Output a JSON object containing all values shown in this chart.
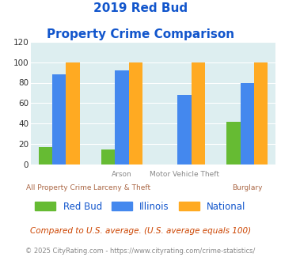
{
  "title_line1": "2019 Red Bud",
  "title_line2": "Property Crime Comparison",
  "cat_labels_top": [
    "",
    "Arson",
    "Motor Vehicle Theft",
    ""
  ],
  "cat_labels_bot": [
    "All Property Crime",
    "Larceny & Theft",
    "",
    "Burglary"
  ],
  "series": {
    "Red Bud": [
      17,
      15,
      0,
      42
    ],
    "Illinois": [
      88,
      92,
      68,
      80
    ],
    "National": [
      100,
      100,
      100,
      100
    ]
  },
  "colors": {
    "Red Bud": "#66bb33",
    "Illinois": "#4488ee",
    "National": "#ffaa22"
  },
  "ylim": [
    0,
    120
  ],
  "yticks": [
    0,
    20,
    40,
    60,
    80,
    100,
    120
  ],
  "background_color": "#ddeef0",
  "title_color": "#1155cc",
  "xlabel_color_top": "#888888",
  "xlabel_color_bot": "#aa6644",
  "legend_label_color": "#1155cc",
  "footnote1": "Compared to U.S. average. (U.S. average equals 100)",
  "footnote2": "© 2025 CityRating.com - https://www.cityrating.com/crime-statistics/",
  "footnote1_color": "#cc4400",
  "footnote2_color": "#888888"
}
